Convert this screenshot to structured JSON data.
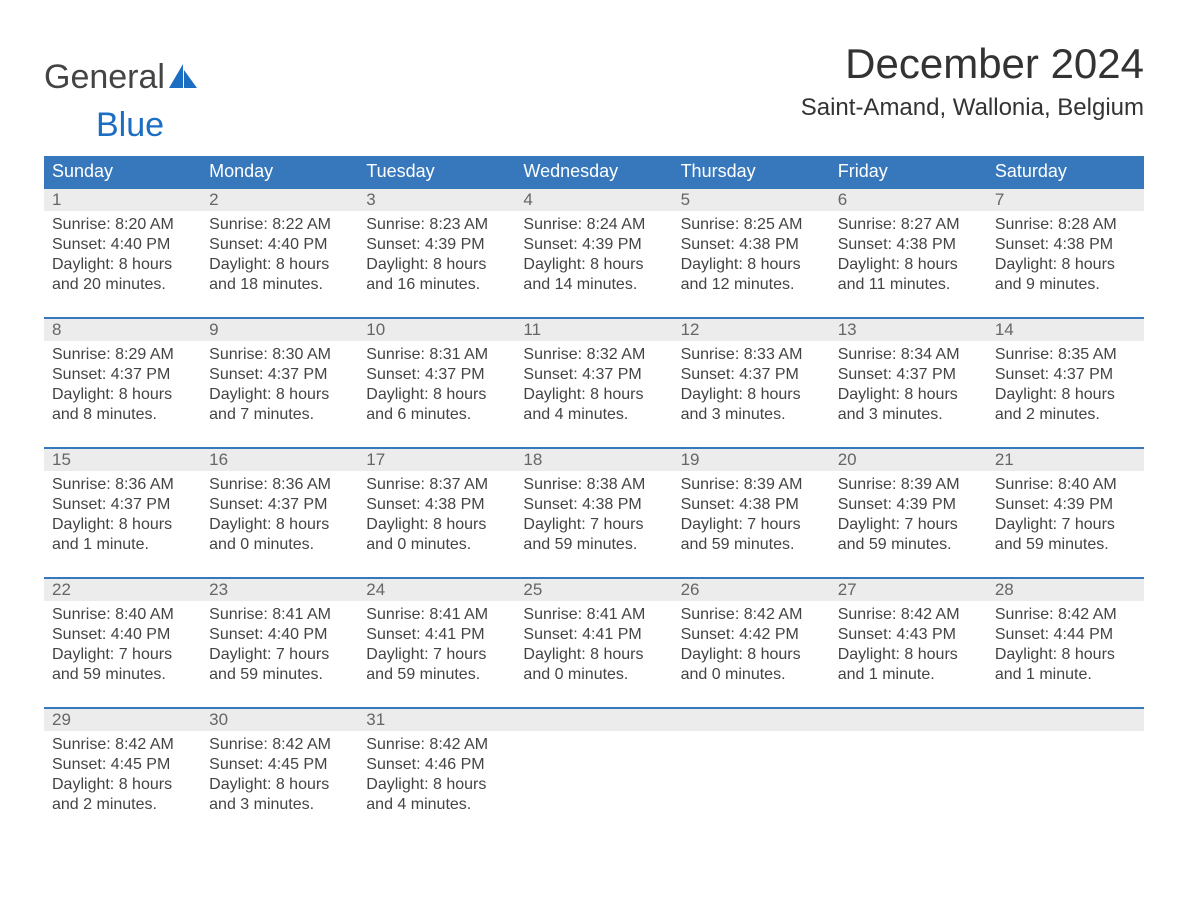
{
  "logo": {
    "top": "General",
    "bottom": "Blue"
  },
  "title": "December 2024",
  "location": "Saint-Amand, Wallonia, Belgium",
  "colors": {
    "header_bg": "#3778bd",
    "header_text": "#ffffff",
    "daynum_bg": "#ececec",
    "daynum_text": "#666666",
    "body_text": "#444444",
    "rule": "#3778bd",
    "logo_blue": "#1b6ec2"
  },
  "day_names": [
    "Sunday",
    "Monday",
    "Tuesday",
    "Wednesday",
    "Thursday",
    "Friday",
    "Saturday"
  ],
  "weeks": [
    [
      {
        "n": "1",
        "sunrise": "Sunrise: 8:20 AM",
        "sunset": "Sunset: 4:40 PM",
        "d1": "Daylight: 8 hours",
        "d2": "and 20 minutes."
      },
      {
        "n": "2",
        "sunrise": "Sunrise: 8:22 AM",
        "sunset": "Sunset: 4:40 PM",
        "d1": "Daylight: 8 hours",
        "d2": "and 18 minutes."
      },
      {
        "n": "3",
        "sunrise": "Sunrise: 8:23 AM",
        "sunset": "Sunset: 4:39 PM",
        "d1": "Daylight: 8 hours",
        "d2": "and 16 minutes."
      },
      {
        "n": "4",
        "sunrise": "Sunrise: 8:24 AM",
        "sunset": "Sunset: 4:39 PM",
        "d1": "Daylight: 8 hours",
        "d2": "and 14 minutes."
      },
      {
        "n": "5",
        "sunrise": "Sunrise: 8:25 AM",
        "sunset": "Sunset: 4:38 PM",
        "d1": "Daylight: 8 hours",
        "d2": "and 12 minutes."
      },
      {
        "n": "6",
        "sunrise": "Sunrise: 8:27 AM",
        "sunset": "Sunset: 4:38 PM",
        "d1": "Daylight: 8 hours",
        "d2": "and 11 minutes."
      },
      {
        "n": "7",
        "sunrise": "Sunrise: 8:28 AM",
        "sunset": "Sunset: 4:38 PM",
        "d1": "Daylight: 8 hours",
        "d2": "and 9 minutes."
      }
    ],
    [
      {
        "n": "8",
        "sunrise": "Sunrise: 8:29 AM",
        "sunset": "Sunset: 4:37 PM",
        "d1": "Daylight: 8 hours",
        "d2": "and 8 minutes."
      },
      {
        "n": "9",
        "sunrise": "Sunrise: 8:30 AM",
        "sunset": "Sunset: 4:37 PM",
        "d1": "Daylight: 8 hours",
        "d2": "and 7 minutes."
      },
      {
        "n": "10",
        "sunrise": "Sunrise: 8:31 AM",
        "sunset": "Sunset: 4:37 PM",
        "d1": "Daylight: 8 hours",
        "d2": "and 6 minutes."
      },
      {
        "n": "11",
        "sunrise": "Sunrise: 8:32 AM",
        "sunset": "Sunset: 4:37 PM",
        "d1": "Daylight: 8 hours",
        "d2": "and 4 minutes."
      },
      {
        "n": "12",
        "sunrise": "Sunrise: 8:33 AM",
        "sunset": "Sunset: 4:37 PM",
        "d1": "Daylight: 8 hours",
        "d2": "and 3 minutes."
      },
      {
        "n": "13",
        "sunrise": "Sunrise: 8:34 AM",
        "sunset": "Sunset: 4:37 PM",
        "d1": "Daylight: 8 hours",
        "d2": "and 3 minutes."
      },
      {
        "n": "14",
        "sunrise": "Sunrise: 8:35 AM",
        "sunset": "Sunset: 4:37 PM",
        "d1": "Daylight: 8 hours",
        "d2": "and 2 minutes."
      }
    ],
    [
      {
        "n": "15",
        "sunrise": "Sunrise: 8:36 AM",
        "sunset": "Sunset: 4:37 PM",
        "d1": "Daylight: 8 hours",
        "d2": "and 1 minute."
      },
      {
        "n": "16",
        "sunrise": "Sunrise: 8:36 AM",
        "sunset": "Sunset: 4:37 PM",
        "d1": "Daylight: 8 hours",
        "d2": "and 0 minutes."
      },
      {
        "n": "17",
        "sunrise": "Sunrise: 8:37 AM",
        "sunset": "Sunset: 4:38 PM",
        "d1": "Daylight: 8 hours",
        "d2": "and 0 minutes."
      },
      {
        "n": "18",
        "sunrise": "Sunrise: 8:38 AM",
        "sunset": "Sunset: 4:38 PM",
        "d1": "Daylight: 7 hours",
        "d2": "and 59 minutes."
      },
      {
        "n": "19",
        "sunrise": "Sunrise: 8:39 AM",
        "sunset": "Sunset: 4:38 PM",
        "d1": "Daylight: 7 hours",
        "d2": "and 59 minutes."
      },
      {
        "n": "20",
        "sunrise": "Sunrise: 8:39 AM",
        "sunset": "Sunset: 4:39 PM",
        "d1": "Daylight: 7 hours",
        "d2": "and 59 minutes."
      },
      {
        "n": "21",
        "sunrise": "Sunrise: 8:40 AM",
        "sunset": "Sunset: 4:39 PM",
        "d1": "Daylight: 7 hours",
        "d2": "and 59 minutes."
      }
    ],
    [
      {
        "n": "22",
        "sunrise": "Sunrise: 8:40 AM",
        "sunset": "Sunset: 4:40 PM",
        "d1": "Daylight: 7 hours",
        "d2": "and 59 minutes."
      },
      {
        "n": "23",
        "sunrise": "Sunrise: 8:41 AM",
        "sunset": "Sunset: 4:40 PM",
        "d1": "Daylight: 7 hours",
        "d2": "and 59 minutes."
      },
      {
        "n": "24",
        "sunrise": "Sunrise: 8:41 AM",
        "sunset": "Sunset: 4:41 PM",
        "d1": "Daylight: 7 hours",
        "d2": "and 59 minutes."
      },
      {
        "n": "25",
        "sunrise": "Sunrise: 8:41 AM",
        "sunset": "Sunset: 4:41 PM",
        "d1": "Daylight: 8 hours",
        "d2": "and 0 minutes."
      },
      {
        "n": "26",
        "sunrise": "Sunrise: 8:42 AM",
        "sunset": "Sunset: 4:42 PM",
        "d1": "Daylight: 8 hours",
        "d2": "and 0 minutes."
      },
      {
        "n": "27",
        "sunrise": "Sunrise: 8:42 AM",
        "sunset": "Sunset: 4:43 PM",
        "d1": "Daylight: 8 hours",
        "d2": "and 1 minute."
      },
      {
        "n": "28",
        "sunrise": "Sunrise: 8:42 AM",
        "sunset": "Sunset: 4:44 PM",
        "d1": "Daylight: 8 hours",
        "d2": "and 1 minute."
      }
    ],
    [
      {
        "n": "29",
        "sunrise": "Sunrise: 8:42 AM",
        "sunset": "Sunset: 4:45 PM",
        "d1": "Daylight: 8 hours",
        "d2": "and 2 minutes."
      },
      {
        "n": "30",
        "sunrise": "Sunrise: 8:42 AM",
        "sunset": "Sunset: 4:45 PM",
        "d1": "Daylight: 8 hours",
        "d2": "and 3 minutes."
      },
      {
        "n": "31",
        "sunrise": "Sunrise: 8:42 AM",
        "sunset": "Sunset: 4:46 PM",
        "d1": "Daylight: 8 hours",
        "d2": "and 4 minutes."
      },
      {
        "n": "",
        "sunrise": "",
        "sunset": "",
        "d1": "",
        "d2": ""
      },
      {
        "n": "",
        "sunrise": "",
        "sunset": "",
        "d1": "",
        "d2": ""
      },
      {
        "n": "",
        "sunrise": "",
        "sunset": "",
        "d1": "",
        "d2": ""
      },
      {
        "n": "",
        "sunrise": "",
        "sunset": "",
        "d1": "",
        "d2": ""
      }
    ]
  ]
}
